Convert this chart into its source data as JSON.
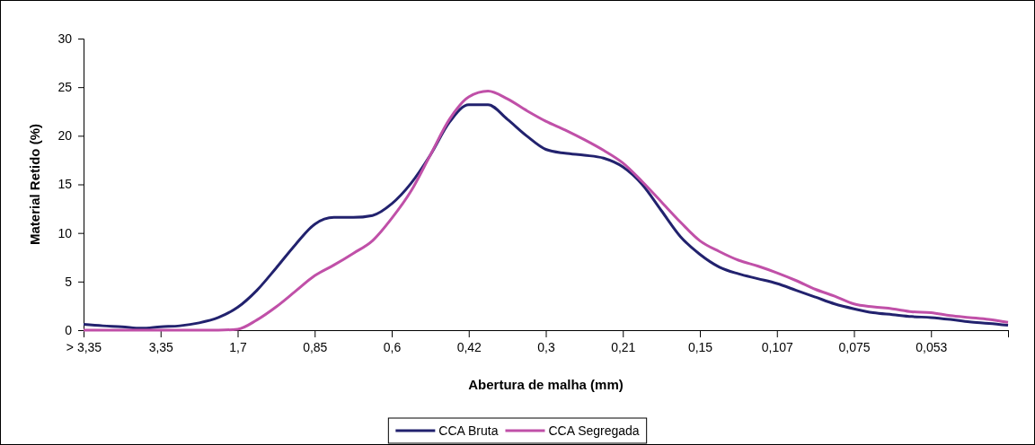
{
  "chart_data": {
    "type": "line",
    "xlabel": "Abertura de malha (mm)",
    "ylabel": "Material Retido (%)",
    "categories": [
      "> 3,35",
      null,
      null,
      null,
      "3,35",
      null,
      null,
      null,
      "1,7",
      null,
      null,
      null,
      "0,85",
      null,
      null,
      null,
      "0,6",
      null,
      null,
      null,
      "0,42",
      null,
      null,
      null,
      "0,3",
      null,
      null,
      null,
      "0,21",
      null,
      null,
      null,
      "0,15",
      null,
      null,
      null,
      "0,107",
      null,
      null,
      null,
      "0,075",
      null,
      null,
      null,
      "0,053",
      null,
      null,
      null,
      null
    ],
    "series": [
      {
        "name": "CCA Bruta",
        "color": "#22226e",
        "values": [
          0.6,
          0.45,
          0.35,
          0.2,
          0.35,
          0.45,
          0.75,
          1.3,
          2.35,
          4.1,
          6.4,
          8.8,
          10.9,
          11.6,
          11.6,
          11.8,
          13.0,
          15.1,
          18.0,
          21.4,
          23.2,
          23.2,
          21.7,
          20.0,
          18.6,
          18.2,
          18.0,
          17.7,
          16.8,
          15.0,
          12.3,
          9.6,
          7.8,
          6.5,
          5.8,
          5.3,
          4.8,
          4.1,
          3.4,
          2.7,
          2.2,
          1.8,
          1.6,
          1.4,
          1.3,
          1.1,
          0.85,
          0.7,
          0.5
        ]
      },
      {
        "name": "CCA Segregada",
        "color": "#c050a8",
        "values": [
          0,
          0,
          0,
          0,
          0,
          0,
          0,
          0,
          0.1,
          1.05,
          2.4,
          4.0,
          5.6,
          6.7,
          7.9,
          9.2,
          11.5,
          14.3,
          18.0,
          21.7,
          24.0,
          24.6,
          23.8,
          22.6,
          21.5,
          20.6,
          19.6,
          18.5,
          17.2,
          15.3,
          13.2,
          11.1,
          9.2,
          8.1,
          7.2,
          6.6,
          5.9,
          5.1,
          4.2,
          3.5,
          2.7,
          2.4,
          2.2,
          1.9,
          1.8,
          1.5,
          1.3,
          1.1,
          0.8
        ]
      }
    ],
    "ylim": [
      0,
      30
    ],
    "yticks": [
      0,
      5,
      10,
      15,
      20,
      25,
      30
    ],
    "grid": false,
    "legend": "bottom",
    "marker": "none",
    "line_style": "solid"
  }
}
